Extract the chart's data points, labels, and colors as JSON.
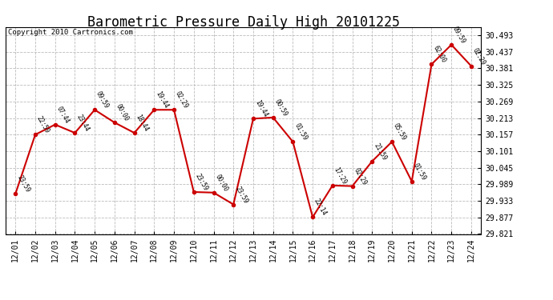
{
  "title": "Barometric Pressure Daily High 20101225",
  "copyright": "Copyright 2010 Cartronics.com",
  "x_labels": [
    "12/01",
    "12/02",
    "12/03",
    "12/04",
    "12/05",
    "12/06",
    "12/07",
    "12/08",
    "12/09",
    "12/10",
    "12/11",
    "12/12",
    "12/13",
    "12/14",
    "12/15",
    "12/16",
    "12/17",
    "12/18",
    "12/19",
    "12/20",
    "12/21",
    "12/22",
    "12/23",
    "12/24"
  ],
  "y_values": [
    29.957,
    30.157,
    30.191,
    30.163,
    30.241,
    30.198,
    30.163,
    30.241,
    30.241,
    29.963,
    29.961,
    29.921,
    30.211,
    30.215,
    30.133,
    29.878,
    29.985,
    29.983,
    30.067,
    30.133,
    29.999,
    30.395,
    30.461,
    30.389
  ],
  "time_labels": [
    "23:59",
    "22:59",
    "07:44",
    "23:44",
    "09:59",
    "00:00",
    "18:44",
    "19:44",
    "02:29",
    "23:59",
    "00:00",
    "23:59",
    "19:44",
    "00:59",
    "01:59",
    "22:14",
    "17:29",
    "02:29",
    "21:59",
    "05:59",
    "01:59",
    "62:00",
    "09:59",
    "02:29"
  ],
  "y_ticks": [
    29.821,
    29.877,
    29.933,
    29.989,
    30.045,
    30.101,
    30.157,
    30.213,
    30.269,
    30.325,
    30.381,
    30.437,
    30.493
  ],
  "y_min": 29.821,
  "y_max": 30.521,
  "line_color": "#cc0000",
  "marker_color": "#cc0000",
  "bg_color": "#ffffff",
  "grid_color": "#bbbbbb",
  "title_fontsize": 12,
  "annot_fontsize": 5.5,
  "tick_fontsize": 7,
  "copyright_fontsize": 6.5
}
